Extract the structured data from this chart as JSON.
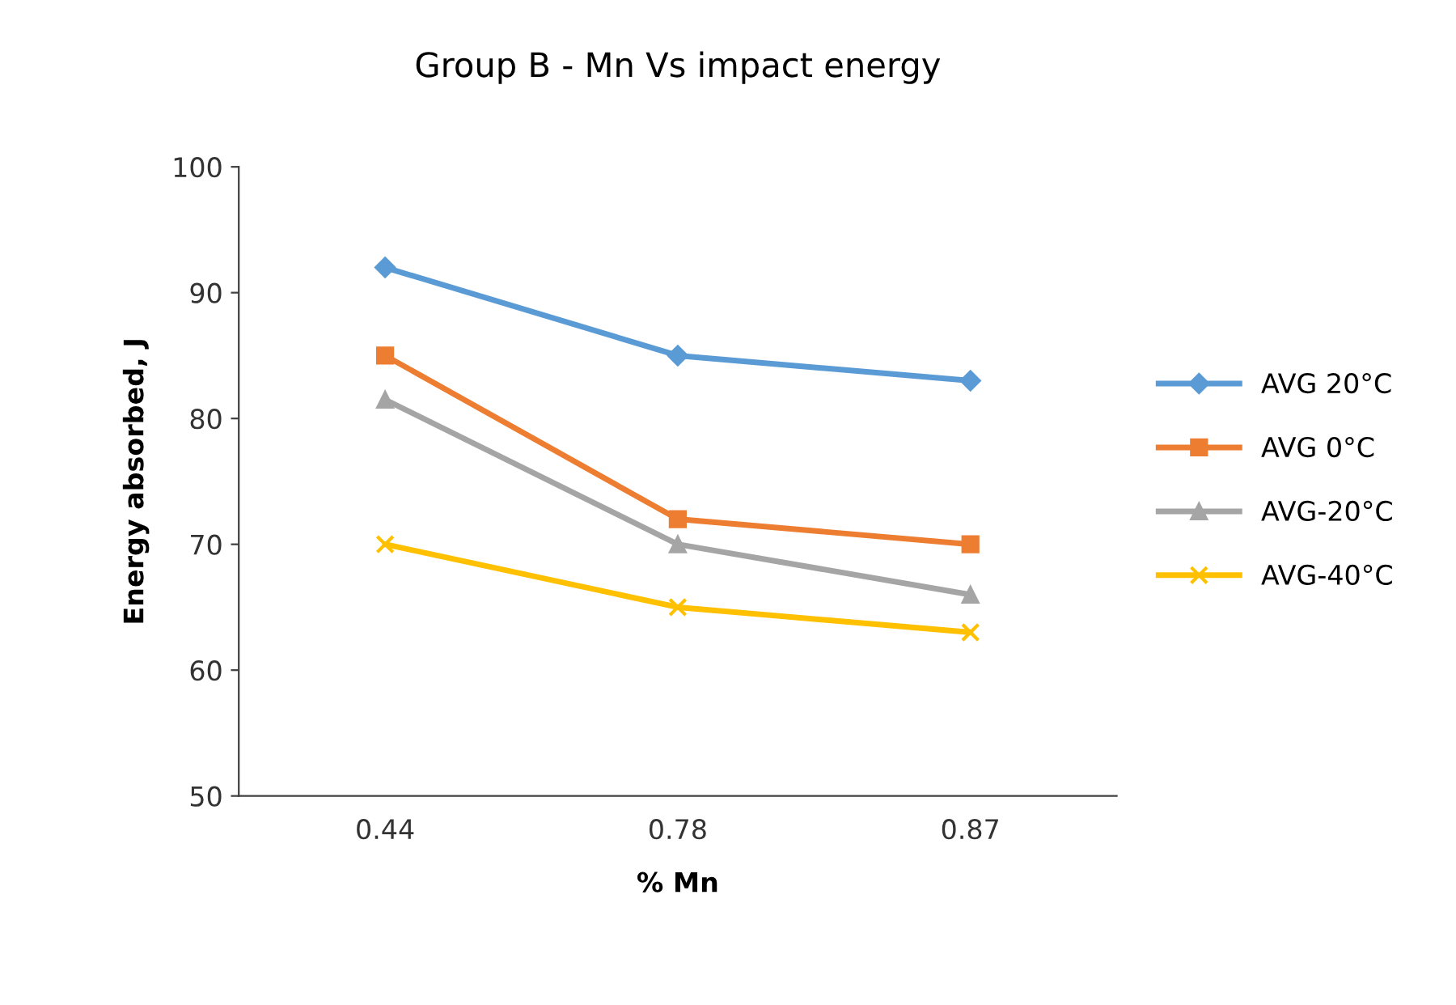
{
  "chart_data": {
    "type": "line",
    "title": "Group B - Mn Vs impact energy",
    "xlabel": "% Mn",
    "ylabel": "Energy absorbed, J",
    "categories": [
      "0.44",
      "0.78",
      "0.87"
    ],
    "series": [
      {
        "name": "AVG 20°C",
        "color": "#5b9bd5",
        "marker": "diamond",
        "values": [
          92,
          85,
          83
        ]
      },
      {
        "name": "AVG 0°C",
        "color": "#ed7d31",
        "marker": "square",
        "values": [
          85,
          72,
          70
        ]
      },
      {
        "name": "AVG-20°C",
        "color": "#a5a5a5",
        "marker": "triangle",
        "values": [
          81.5,
          70,
          66
        ]
      },
      {
        "name": "AVG-40°C",
        "color": "#ffc000",
        "marker": "cross",
        "values": [
          70,
          65,
          63
        ]
      }
    ],
    "ylim": [
      50,
      100
    ],
    "yticks": [
      50,
      60,
      70,
      80,
      90,
      100
    ],
    "grid": false,
    "legend": "right"
  }
}
